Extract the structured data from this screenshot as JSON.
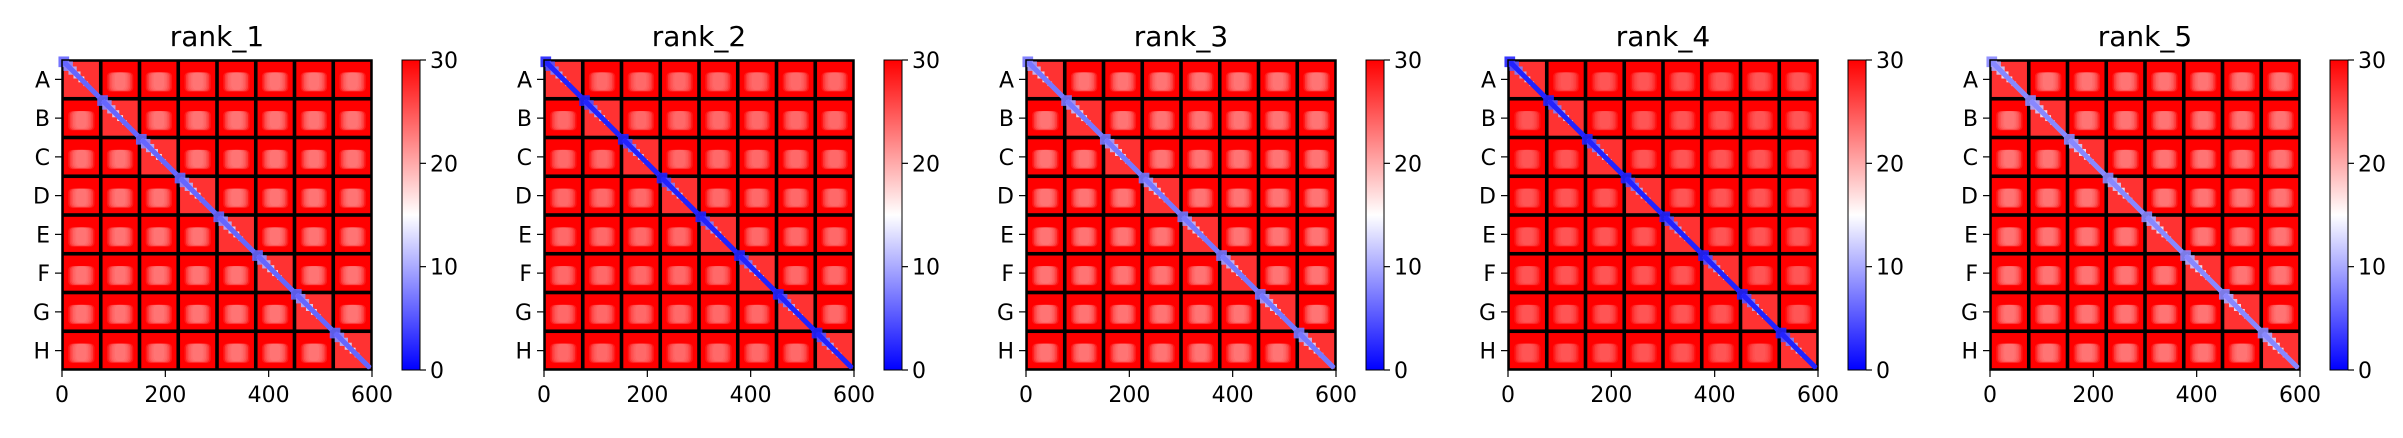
{
  "chart_data": [
    {
      "type": "heatmap",
      "title": "rank_1",
      "xlim": [
        0,
        600
      ],
      "xticks": [
        "0",
        "200",
        "400",
        "600"
      ],
      "ylabels": [
        "A",
        "B",
        "C",
        "D",
        "E",
        "F",
        "G",
        "H"
      ],
      "colorbar": {
        "range": [
          0,
          30
        ],
        "ticks": [
          "0",
          "10",
          "20",
          "30"
        ],
        "colormap": "bwr"
      },
      "block_diag_value": 6,
      "offdiag_min": 19
    },
    {
      "type": "heatmap",
      "title": "rank_2",
      "xlim": [
        0,
        600
      ],
      "xticks": [
        "0",
        "200",
        "400",
        "600"
      ],
      "ylabels": [
        "A",
        "B",
        "C",
        "D",
        "E",
        "F",
        "G",
        "H"
      ],
      "colorbar": {
        "range": [
          0,
          30
        ],
        "ticks": [
          "0",
          "10",
          "20",
          "30"
        ],
        "colormap": "bwr"
      },
      "block_diag_value": 2,
      "offdiag_min": 20
    },
    {
      "type": "heatmap",
      "title": "rank_3",
      "xlim": [
        0,
        600
      ],
      "xticks": [
        "0",
        "200",
        "400",
        "600"
      ],
      "ylabels": [
        "A",
        "B",
        "C",
        "D",
        "E",
        "F",
        "G",
        "H"
      ],
      "colorbar": {
        "range": [
          0,
          30
        ],
        "ticks": [
          "0",
          "10",
          "20",
          "30"
        ],
        "colormap": "bwr"
      },
      "block_diag_value": 7,
      "offdiag_min": 19
    },
    {
      "type": "heatmap",
      "title": "rank_4",
      "xlim": [
        0,
        600
      ],
      "xticks": [
        "0",
        "200",
        "400",
        "600"
      ],
      "ylabels": [
        "A",
        "B",
        "C",
        "D",
        "E",
        "F",
        "G",
        "H"
      ],
      "colorbar": {
        "range": [
          0,
          30
        ],
        "ticks": [
          "0",
          "10",
          "20",
          "30"
        ],
        "colormap": "bwr"
      },
      "block_diag_value": 2,
      "offdiag_min": 22
    },
    {
      "type": "heatmap",
      "title": "rank_5",
      "xlim": [
        0,
        600
      ],
      "xticks": [
        "0",
        "200",
        "400",
        "600"
      ],
      "ylabels": [
        "A",
        "B",
        "C",
        "D",
        "E",
        "F",
        "G",
        "H"
      ],
      "colorbar": {
        "range": [
          0,
          30
        ],
        "ticks": [
          "0",
          "10",
          "20",
          "30"
        ],
        "colormap": "bwr"
      },
      "block_diag_value": 8,
      "offdiag_min": 19
    }
  ],
  "colors": {
    "low": "#0000ff",
    "mid": "#ffffff",
    "high": "#ff0000",
    "grid": "#000000"
  }
}
